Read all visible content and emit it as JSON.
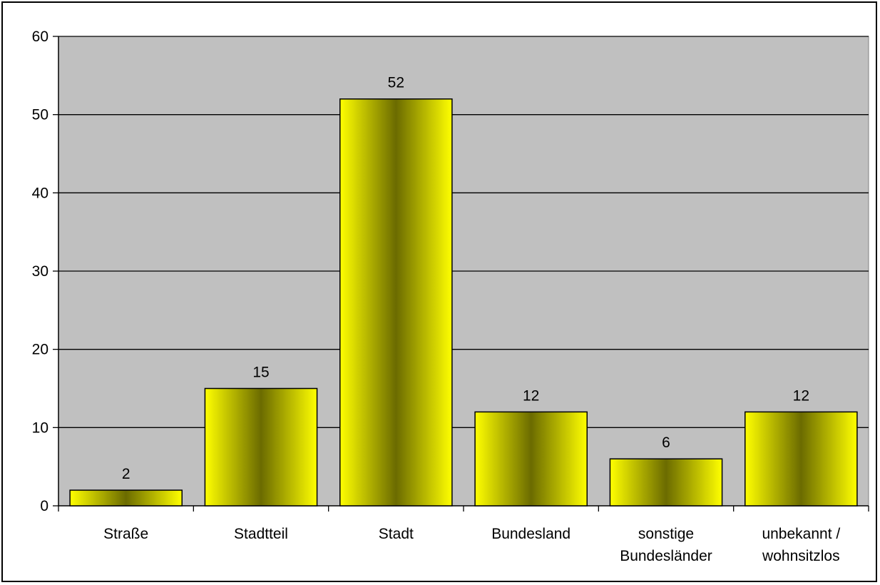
{
  "chart_data": {
    "type": "bar",
    "categories": [
      [
        "Straße"
      ],
      [
        "Stadtteil"
      ],
      [
        "Stadt"
      ],
      [
        "Bundesland"
      ],
      [
        "sonstige",
        "Bundesländer"
      ],
      [
        "unbekannt /",
        "wohnsitzlos"
      ]
    ],
    "values": [
      2,
      15,
      52,
      12,
      6,
      12
    ],
    "data_labels": [
      "2",
      "15",
      "52",
      "12",
      "6",
      "12"
    ],
    "yticks": [
      "0",
      "10",
      "20",
      "30",
      "40",
      "50",
      "60"
    ],
    "ylim": [
      0,
      60
    ],
    "grid": true,
    "legend": "none",
    "colors": {
      "plot_bg": "#c0c0c0",
      "bar_light": "#ffff00",
      "bar_dark": "#6b6b00",
      "grid": "#000000",
      "border": "#000000"
    }
  }
}
